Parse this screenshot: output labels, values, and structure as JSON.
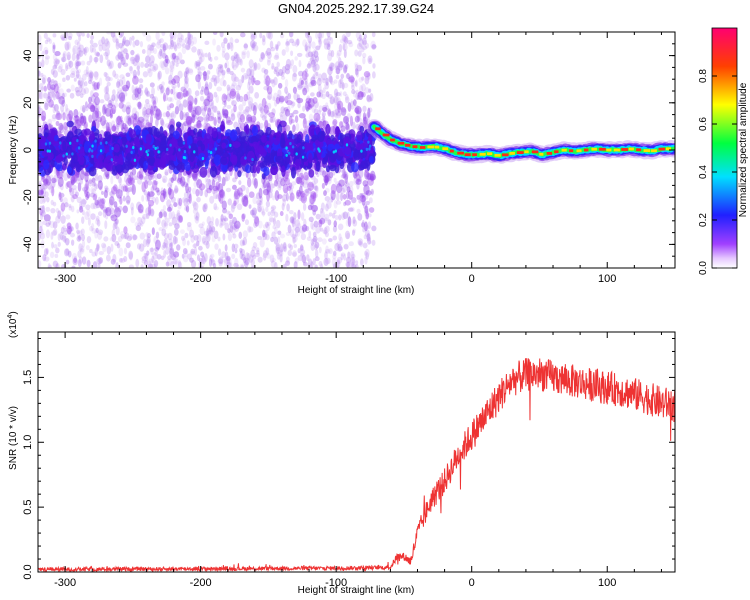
{
  "title": "GN04.2025.292.17.39.G24",
  "chart_data": [
    {
      "type": "heatmap",
      "title": "GN04.2025.292.17.39.G24",
      "xlabel": "Height of straight line (km)",
      "ylabel": "Frequency (Hz)",
      "xlim": [
        -320,
        150
      ],
      "ylim": [
        -50,
        50
      ],
      "xticks": [
        -300,
        -200,
        -100,
        0,
        100
      ],
      "xtick_labels": [
        "-300",
        "-200",
        "-100",
        "0",
        "100"
      ],
      "yticks": [
        -40,
        -20,
        0,
        20,
        40
      ],
      "ytick_labels": [
        "-40",
        "-20",
        "0",
        "20",
        "40"
      ],
      "signal_onset_x": -72,
      "noise_region": {
        "x_range": [
          -320,
          -72
        ],
        "core_band_hz": [
          -8,
          8
        ]
      },
      "signal_track": {
        "x": [
          -72,
          -66,
          -60,
          -52,
          -44,
          -36,
          -28,
          -20,
          -12,
          -4,
          4,
          12,
          20,
          28,
          36,
          44,
          52,
          60,
          68,
          76,
          84,
          92,
          100,
          108,
          116,
          124,
          132,
          140,
          150
        ],
        "freq": [
          10,
          7,
          4.5,
          2.5,
          1.5,
          1,
          1.5,
          0.5,
          -1,
          -2,
          -2,
          -1.5,
          -2.5,
          -1.5,
          -1,
          -0.5,
          -2,
          -1,
          0,
          -0.5,
          0,
          0.5,
          0,
          0,
          0.5,
          0,
          -0.5,
          0.5,
          0.5
        ]
      },
      "colorbar": {
        "label": "Normalized spectral amplitude",
        "range": [
          0,
          1
        ],
        "ticks": [
          0.0,
          0.2,
          0.4,
          0.6,
          0.8
        ],
        "tick_labels": [
          "0.0",
          "0.2",
          "0.4",
          "0.6",
          "0.8"
        ]
      }
    },
    {
      "type": "line",
      "title": "",
      "xlabel": "Height of straight line (km)",
      "ylabel": "SNR (10 * v/v)",
      "scale_label_base": "(x10",
      "scale_label_exp": "4",
      "scale_label_end": ")",
      "xlim": [
        -320,
        150
      ],
      "ylim": [
        0,
        18500
      ],
      "xticks": [
        -300,
        -200,
        -100,
        0,
        100
      ],
      "xtick_labels": [
        "-300",
        "-200",
        "-100",
        "0",
        "100"
      ],
      "yticks": [
        0,
        5000,
        10000,
        15000
      ],
      "ytick_labels": [
        "0.0",
        "0.5",
        "1.0",
        "1.5"
      ],
      "color": "#ee3333",
      "series": [
        {
          "name": "SNR",
          "x": [
            -320,
            -200,
            -100,
            -60,
            -55,
            -50,
            -45,
            -40,
            -30,
            -20,
            -10,
            0,
            10,
            20,
            30,
            40,
            50,
            60,
            70,
            80,
            90,
            100,
            110,
            120,
            130,
            140,
            150
          ],
          "y": [
            200,
            250,
            300,
            350,
            1200,
            1200,
            800,
            3000,
            5500,
            7000,
            9000,
            10500,
            12000,
            13500,
            14800,
            15200,
            15300,
            15000,
            14800,
            14600,
            14400,
            14200,
            14000,
            13700,
            13400,
            13000,
            12900
          ],
          "noise_amplitude": [
            150,
            150,
            150,
            150,
            300,
            300,
            400,
            700,
            900,
            1000,
            1100,
            1200,
            1300,
            1300,
            1300,
            1300,
            1300,
            1300,
            1300,
            1300,
            1300,
            1300,
            1300,
            1300,
            1300,
            1300,
            1300
          ]
        }
      ]
    }
  ]
}
